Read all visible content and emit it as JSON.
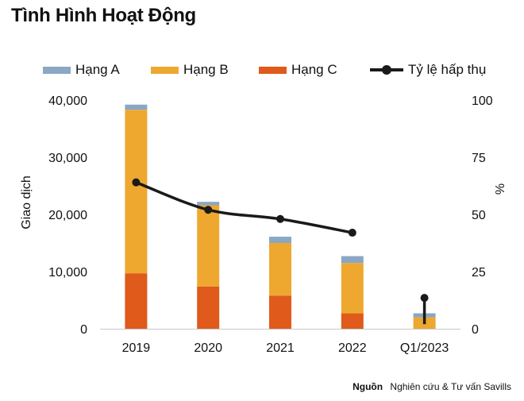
{
  "title": "Tình Hình Hoạt Động",
  "legend": {
    "a": "Hạng A",
    "b": "Hạng B",
    "c": "Hạng C",
    "rate": "Tỷ lệ hấp thụ"
  },
  "colors": {
    "a": "#8aa7c4",
    "b": "#eea830",
    "c": "#e05a1b",
    "line": "#1a1a1a"
  },
  "source": {
    "label": "Nguồn",
    "text": "Nghiên cứu & Tư vấn Savills"
  },
  "chart_data": {
    "type": "bar",
    "stacked": true,
    "categories": [
      "2019",
      "2020",
      "2021",
      "2022",
      "Q1/2023"
    ],
    "series": [
      {
        "name": "Hạng C",
        "values": [
          9700,
          7400,
          5800,
          2700,
          0
        ]
      },
      {
        "name": "Hạng B",
        "values": [
          28600,
          14200,
          9200,
          8800,
          2000
        ]
      },
      {
        "name": "Hạng A",
        "values": [
          900,
          600,
          1100,
          1200,
          700
        ]
      },
      {
        "name": "Tỷ lệ hấp thụ",
        "type": "line",
        "axis": "right",
        "values": [
          64,
          52,
          48,
          42,
          13.5
        ]
      }
    ],
    "ylabel": "Giao dịch",
    "y2label": "%",
    "ylim": [
      0,
      40000
    ],
    "y2lim": [
      0,
      100
    ],
    "yticks": [
      "0",
      "10,000",
      "20,000",
      "30,000",
      "40,000"
    ],
    "y2ticks": [
      "0",
      "25",
      "50",
      "75",
      "100"
    ],
    "grid": false,
    "legend_position": "top"
  }
}
